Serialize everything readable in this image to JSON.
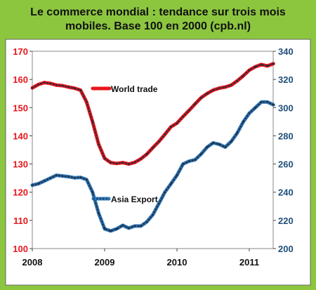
{
  "chart_data": {
    "type": "line",
    "title_line1": "Le commerce mondial : tendance sur trois mois",
    "title_line2": "mobiles. Base 100 en 2000 (cpb.nl)",
    "x_ticks": [
      "2008",
      "2009",
      "2010",
      "2011"
    ],
    "x_tick_values": [
      2008,
      2009,
      2010,
      2011
    ],
    "xlim": [
      2008,
      2011.33
    ],
    "ylim_left": [
      100,
      170
    ],
    "ylim_right": [
      200,
      340
    ],
    "y_ticks_left": [
      100,
      110,
      120,
      130,
      140,
      150,
      160,
      170
    ],
    "y_ticks_right": [
      200,
      220,
      240,
      260,
      280,
      300,
      320,
      340
    ],
    "grid": false,
    "colors": {
      "left_axis": "#e8151b",
      "right_axis": "#1f4e79",
      "world": "#e8151b",
      "asia": "#2e75b6",
      "dots": "#1f2d3d"
    },
    "series": [
      {
        "name": "World trade",
        "axis": "left",
        "x": [
          2008.0,
          2008.083,
          2008.167,
          2008.25,
          2008.333,
          2008.417,
          2008.5,
          2008.583,
          2008.667,
          2008.75,
          2008.833,
          2008.917,
          2009.0,
          2009.083,
          2009.167,
          2009.25,
          2009.333,
          2009.417,
          2009.5,
          2009.583,
          2009.667,
          2009.75,
          2009.833,
          2009.917,
          2010.0,
          2010.083,
          2010.167,
          2010.25,
          2010.333,
          2010.417,
          2010.5,
          2010.583,
          2010.667,
          2010.75,
          2010.833,
          2010.917,
          2011.0,
          2011.083,
          2011.167,
          2011.25,
          2011.333
        ],
        "values": [
          157.0,
          158.2,
          158.9,
          158.6,
          158.0,
          157.8,
          157.3,
          156.9,
          156.2,
          152.0,
          145.0,
          137.0,
          132.0,
          130.5,
          130.2,
          130.5,
          130.0,
          130.6,
          131.8,
          133.5,
          135.8,
          138.0,
          140.5,
          143.2,
          144.5,
          146.8,
          149.0,
          151.3,
          153.5,
          155.0,
          156.2,
          156.9,
          157.3,
          158.0,
          159.5,
          161.3,
          163.3,
          164.5,
          165.3,
          164.8,
          165.6
        ]
      },
      {
        "name": "Asia Export",
        "axis": "right",
        "x": [
          2008.0,
          2008.083,
          2008.167,
          2008.25,
          2008.333,
          2008.417,
          2008.5,
          2008.583,
          2008.667,
          2008.75,
          2008.833,
          2008.917,
          2009.0,
          2009.083,
          2009.167,
          2009.25,
          2009.333,
          2009.417,
          2009.5,
          2009.583,
          2009.667,
          2009.75,
          2009.833,
          2009.917,
          2010.0,
          2010.083,
          2010.167,
          2010.25,
          2010.333,
          2010.417,
          2010.5,
          2010.583,
          2010.667,
          2010.75,
          2010.833,
          2010.917,
          2011.0,
          2011.083,
          2011.167,
          2011.25,
          2011.333
        ],
        "values": [
          245.0,
          246.0,
          248.0,
          250.0,
          252.0,
          251.5,
          251.0,
          250.2,
          250.5,
          249.0,
          240.0,
          225.0,
          214.0,
          212.5,
          214.0,
          216.5,
          214.5,
          216.0,
          216.0,
          219.0,
          224.0,
          232.0,
          240.0,
          246.0,
          252.0,
          260.0,
          262.0,
          263.0,
          267.0,
          272.0,
          275.0,
          274.0,
          272.0,
          276.0,
          282.0,
          290.0,
          296.0,
          300.0,
          304.0,
          304.0,
          302.0
        ]
      }
    ]
  }
}
